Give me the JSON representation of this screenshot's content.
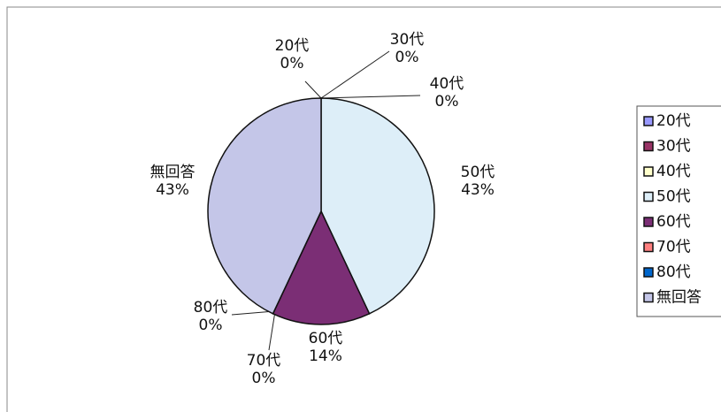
{
  "chart_data": {
    "type": "pie",
    "categories": [
      "20代",
      "30代",
      "40代",
      "50代",
      "60代",
      "70代",
      "80代",
      "無回答"
    ],
    "values": [
      0,
      0,
      0,
      43,
      14,
      0,
      0,
      43
    ],
    "value_labels": [
      "0%",
      "0%",
      "0%",
      "43%",
      "14%",
      "0%",
      "0%",
      "43%"
    ],
    "colors": [
      "#9999ff",
      "#993366",
      "#ffffcc",
      "#ddeef8",
      "#7b2e75",
      "#ff8080",
      "#0066cc",
      "#c4c6e8"
    ],
    "legend": "right"
  }
}
